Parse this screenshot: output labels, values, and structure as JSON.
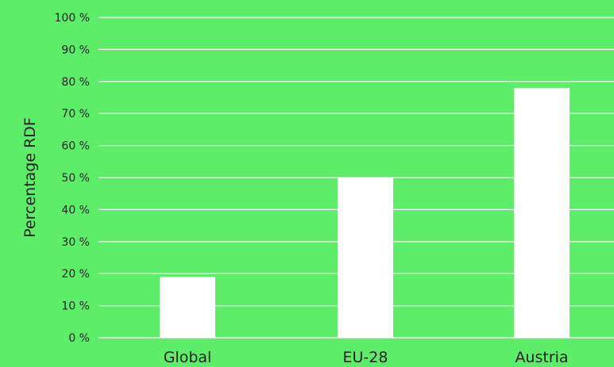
{
  "chart_data": {
    "type": "bar",
    "title": "",
    "xlabel": "",
    "ylabel": "Percentage RDF",
    "categories": [
      "Global",
      "EU-28",
      "Austria"
    ],
    "values": [
      19,
      50,
      78
    ],
    "ylim": [
      0,
      100
    ],
    "yticks": [
      "0 %",
      "10 %",
      "20 %",
      "30 %",
      "40 %",
      "50 %",
      "60 %",
      "70 %",
      "80 %",
      "90 %",
      "100 %"
    ],
    "grid": true,
    "legend": "none",
    "colors": {
      "background": "#5ded68",
      "bar": "#ffffff",
      "grid": "#ffffff",
      "text": "#1f1f1f"
    }
  }
}
